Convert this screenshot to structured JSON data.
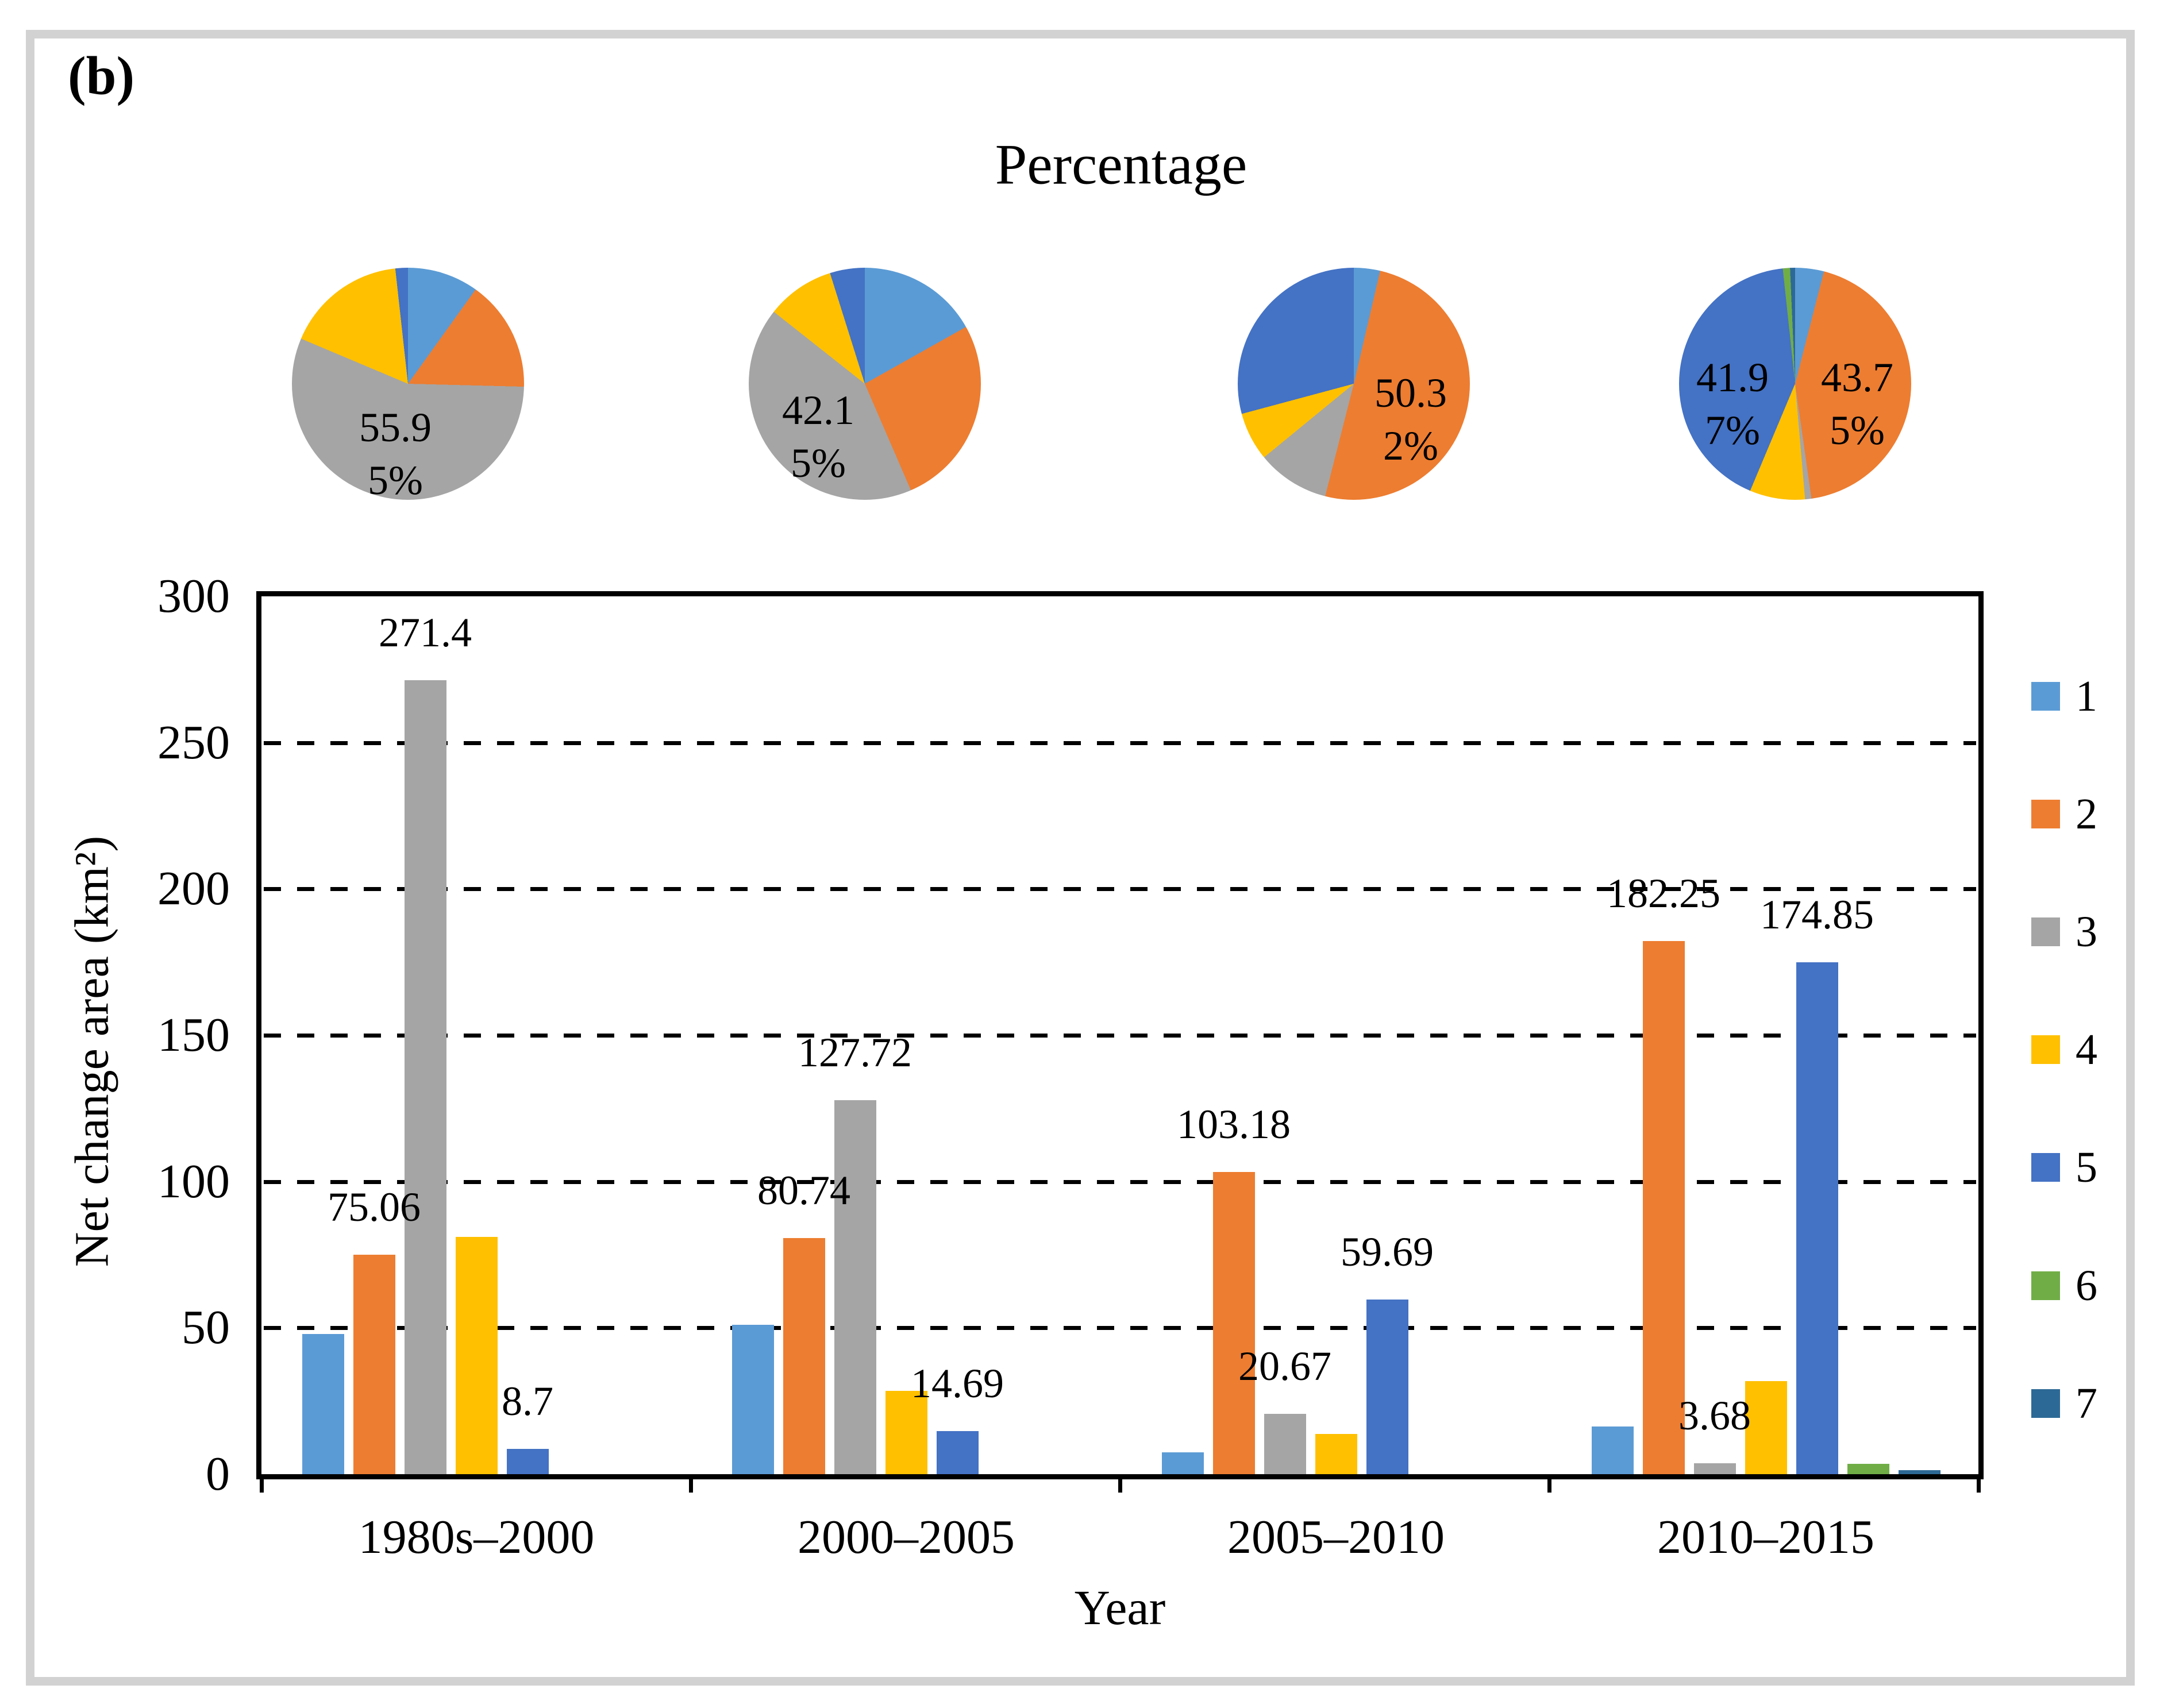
{
  "figure_label": "(b)",
  "axis": {
    "y_ticks": [
      300,
      250,
      200,
      150,
      100,
      50,
      0
    ]
  },
  "legend": {
    "items": [
      {
        "label": "1",
        "color": "#5B9BD5"
      },
      {
        "label": "2",
        "color": "#ED7D31"
      },
      {
        "label": "3",
        "color": "#A5A5A5"
      },
      {
        "label": "4",
        "color": "#FFC000"
      },
      {
        "label": "5",
        "color": "#4472C4"
      },
      {
        "label": "6",
        "color": "#70AD47"
      },
      {
        "label": "7",
        "color": "#2D6996"
      }
    ]
  },
  "chart_data": [
    {
      "type": "bar",
      "title": "",
      "xlabel": "Year",
      "ylabel": "Net change area (km²)",
      "ylim": [
        0,
        300
      ],
      "y_tick_step": 50,
      "grid": "horizontal dashed lines at 50,100,150,200,250",
      "legend_position": "right",
      "categories": [
        "1980s–2000",
        "2000–2005",
        "2005–2010",
        "2010–2015"
      ],
      "series": [
        {
          "name": "1",
          "color": "#5B9BD5",
          "values": [
            48,
            51,
            7.5,
            16.3
          ]
        },
        {
          "name": "2",
          "color": "#ED7D31",
          "values": [
            75.06,
            80.74,
            103.18,
            182.25
          ]
        },
        {
          "name": "3",
          "color": "#A5A5A5",
          "values": [
            271.4,
            127.72,
            20.67,
            3.68
          ]
        },
        {
          "name": "4",
          "color": "#FFC000",
          "values": [
            81,
            28.5,
            13.8,
            31.8
          ]
        },
        {
          "name": "5",
          "color": "#4472C4",
          "values": [
            8.7,
            14.69,
            59.69,
            174.85
          ]
        },
        {
          "name": "6",
          "color": "#70AD47",
          "values": [
            0,
            0,
            0,
            3.5
          ]
        },
        {
          "name": "7",
          "color": "#2D6996",
          "values": [
            0,
            0,
            0,
            1.4
          ]
        }
      ],
      "data_labels": [
        {
          "category_index": 0,
          "series": "2",
          "text": "75.06"
        },
        {
          "category_index": 0,
          "series": "3",
          "text": "271.4"
        },
        {
          "category_index": 0,
          "series": "5",
          "text": "8.7"
        },
        {
          "category_index": 1,
          "series": "2",
          "text": "80.74"
        },
        {
          "category_index": 1,
          "series": "3",
          "text": "127.72"
        },
        {
          "category_index": 1,
          "series": "5",
          "text": "14.69"
        },
        {
          "category_index": 2,
          "series": "2",
          "text": "103.18"
        },
        {
          "category_index": 2,
          "series": "3",
          "text": "20.67"
        },
        {
          "category_index": 2,
          "series": "5",
          "text": "59.69"
        },
        {
          "category_index": 3,
          "series": "2",
          "text": "182.25"
        },
        {
          "category_index": 3,
          "series": "3",
          "text": "3.68"
        },
        {
          "category_index": 3,
          "series": "5",
          "text": "174.85"
        }
      ]
    },
    {
      "type": "pie",
      "title": "Percentage",
      "series_names": [
        "1",
        "2",
        "3",
        "4",
        "5",
        "6",
        "7"
      ],
      "pies": [
        {
          "category": "1980s–2000",
          "values_pct": [
            9.9,
            15.5,
            55.95,
            16.9,
            1.75,
            0,
            0
          ],
          "labels": [
            {
              "lines": [
                "55.9",
                "5%"
              ],
              "on_slice": "3"
            }
          ]
        },
        {
          "category": "2000–2005",
          "values_pct": [
            16.85,
            26.65,
            42.15,
            9.5,
            4.85,
            0,
            0
          ],
          "labels": [
            {
              "lines": [
                "42.1",
                "5%"
              ],
              "on_slice": "3"
            }
          ]
        },
        {
          "category": "2005–2010",
          "values_pct": [
            3.65,
            50.32,
            10.1,
            6.75,
            29.18,
            0,
            0
          ],
          "labels": [
            {
              "lines": [
                "50.3",
                "2%"
              ],
              "on_slice": "2"
            }
          ]
        },
        {
          "category": "2010–2015",
          "values_pct": [
            4.0,
            43.75,
            0.88,
            7.7,
            41.97,
            1.0,
            0.7
          ],
          "labels": [
            {
              "lines": [
                "41.9",
                "7%"
              ],
              "on_slice": "5"
            },
            {
              "lines": [
                "43.7",
                "5%"
              ],
              "on_slice": "2"
            }
          ]
        }
      ]
    }
  ]
}
